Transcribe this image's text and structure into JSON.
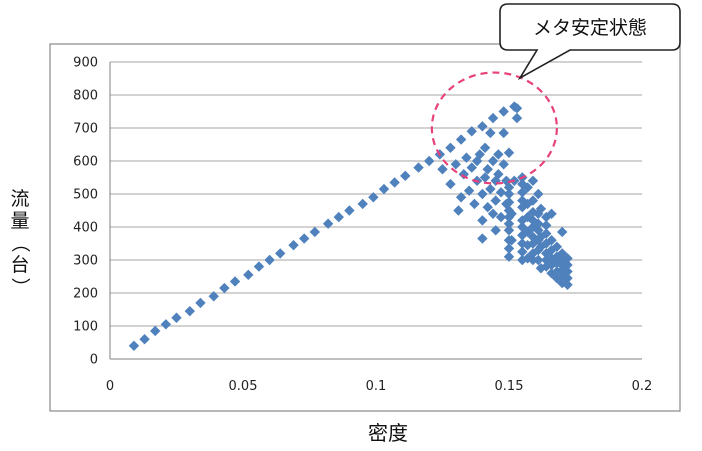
{
  "chart_data": {
    "type": "scatter",
    "xlabel": "密度",
    "ylabel_chars": [
      "流",
      "量",
      "（",
      "台",
      "）"
    ],
    "xlim": [
      0,
      0.2
    ],
    "ylim": [
      0,
      900
    ],
    "x_ticks": [
      "0",
      "0.05",
      "0.1",
      "0.15",
      "0.2"
    ],
    "y_ticks": [
      "0",
      "100",
      "200",
      "300",
      "400",
      "500",
      "600",
      "700",
      "800",
      "900"
    ],
    "x_tick_values": [
      0,
      0.05,
      0.1,
      0.15,
      0.2
    ],
    "y_tick_values": [
      0,
      100,
      200,
      300,
      400,
      500,
      600,
      700,
      800,
      900
    ],
    "grid": true,
    "marker_color": "#4F81BD",
    "annotation": {
      "text": "メタ安定状態",
      "ellipse_color": "#E8407A",
      "ellipse_center": [
        0.1445,
        700
      ],
      "ellipse_rx": 0.0235,
      "ellipse_ry": 168
    },
    "points": [
      [
        0.009,
        40
      ],
      [
        0.013,
        60
      ],
      [
        0.017,
        85
      ],
      [
        0.021,
        105
      ],
      [
        0.025,
        125
      ],
      [
        0.03,
        145
      ],
      [
        0.034,
        170
      ],
      [
        0.039,
        190
      ],
      [
        0.043,
        215
      ],
      [
        0.047,
        235
      ],
      [
        0.052,
        255
      ],
      [
        0.056,
        280
      ],
      [
        0.06,
        300
      ],
      [
        0.064,
        320
      ],
      [
        0.069,
        345
      ],
      [
        0.073,
        365
      ],
      [
        0.077,
        385
      ],
      [
        0.082,
        410
      ],
      [
        0.086,
        430
      ],
      [
        0.09,
        450
      ],
      [
        0.095,
        470
      ],
      [
        0.099,
        490
      ],
      [
        0.103,
        515
      ],
      [
        0.107,
        535
      ],
      [
        0.111,
        555
      ],
      [
        0.116,
        580
      ],
      [
        0.12,
        600
      ],
      [
        0.124,
        620
      ],
      [
        0.128,
        640
      ],
      [
        0.132,
        665
      ],
      [
        0.136,
        690
      ],
      [
        0.14,
        705
      ],
      [
        0.144,
        730
      ],
      [
        0.148,
        750
      ],
      [
        0.152,
        765
      ],
      [
        0.125,
        575
      ],
      [
        0.128,
        530
      ],
      [
        0.13,
        590
      ],
      [
        0.131,
        450
      ],
      [
        0.132,
        490
      ],
      [
        0.133,
        560
      ],
      [
        0.134,
        610
      ],
      [
        0.135,
        510
      ],
      [
        0.136,
        580
      ],
      [
        0.137,
        470
      ],
      [
        0.138,
        540
      ],
      [
        0.138,
        600
      ],
      [
        0.139,
        620
      ],
      [
        0.14,
        365
      ],
      [
        0.14,
        420
      ],
      [
        0.14,
        500
      ],
      [
        0.141,
        550
      ],
      [
        0.141,
        640
      ],
      [
        0.142,
        460
      ],
      [
        0.142,
        575
      ],
      [
        0.143,
        515
      ],
      [
        0.143,
        685
      ],
      [
        0.144,
        600
      ],
      [
        0.144,
        440
      ],
      [
        0.145,
        390
      ],
      [
        0.145,
        480
      ],
      [
        0.145,
        540
      ],
      [
        0.146,
        620
      ],
      [
        0.146,
        560
      ],
      [
        0.147,
        430
      ],
      [
        0.147,
        505
      ],
      [
        0.148,
        685
      ],
      [
        0.148,
        590
      ],
      [
        0.149,
        470
      ],
      [
        0.149,
        540
      ],
      [
        0.15,
        310
      ],
      [
        0.15,
        335
      ],
      [
        0.15,
        360
      ],
      [
        0.15,
        390
      ],
      [
        0.15,
        410
      ],
      [
        0.15,
        430
      ],
      [
        0.15,
        450
      ],
      [
        0.15,
        475
      ],
      [
        0.15,
        500
      ],
      [
        0.15,
        520
      ],
      [
        0.15,
        625
      ],
      [
        0.151,
        360
      ],
      [
        0.151,
        440
      ],
      [
        0.152,
        540
      ],
      [
        0.153,
        760
      ],
      [
        0.153,
        730
      ],
      [
        0.155,
        300
      ],
      [
        0.155,
        325
      ],
      [
        0.155,
        350
      ],
      [
        0.155,
        375
      ],
      [
        0.155,
        400
      ],
      [
        0.155,
        420
      ],
      [
        0.155,
        460
      ],
      [
        0.155,
        480
      ],
      [
        0.155,
        505
      ],
      [
        0.155,
        530
      ],
      [
        0.155,
        550
      ],
      [
        0.157,
        305
      ],
      [
        0.157,
        345
      ],
      [
        0.157,
        385
      ],
      [
        0.157,
        430
      ],
      [
        0.157,
        470
      ],
      [
        0.157,
        520
      ],
      [
        0.159,
        300
      ],
      [
        0.159,
        320
      ],
      [
        0.159,
        350
      ],
      [
        0.159,
        370
      ],
      [
        0.159,
        400
      ],
      [
        0.159,
        420
      ],
      [
        0.159,
        445
      ],
      [
        0.159,
        480
      ],
      [
        0.159,
        540
      ],
      [
        0.161,
        300
      ],
      [
        0.161,
        330
      ],
      [
        0.161,
        360
      ],
      [
        0.161,
        390
      ],
      [
        0.161,
        410
      ],
      [
        0.161,
        440
      ],
      [
        0.161,
        500
      ],
      [
        0.162,
        275
      ],
      [
        0.162,
        340
      ],
      [
        0.162,
        370
      ],
      [
        0.162,
        455
      ],
      [
        0.164,
        280
      ],
      [
        0.164,
        300
      ],
      [
        0.164,
        320
      ],
      [
        0.164,
        350
      ],
      [
        0.164,
        380
      ],
      [
        0.164,
        405
      ],
      [
        0.164,
        430
      ],
      [
        0.166,
        260
      ],
      [
        0.166,
        285
      ],
      [
        0.166,
        305
      ],
      [
        0.166,
        330
      ],
      [
        0.166,
        360
      ],
      [
        0.166,
        440
      ],
      [
        0.168,
        245
      ],
      [
        0.168,
        265
      ],
      [
        0.168,
        290
      ],
      [
        0.168,
        310
      ],
      [
        0.168,
        340
      ],
      [
        0.17,
        230
      ],
      [
        0.17,
        250
      ],
      [
        0.17,
        270
      ],
      [
        0.17,
        285
      ],
      [
        0.17,
        300
      ],
      [
        0.17,
        320
      ],
      [
        0.17,
        385
      ],
      [
        0.172,
        225
      ],
      [
        0.172,
        245
      ],
      [
        0.172,
        265
      ],
      [
        0.172,
        285
      ],
      [
        0.172,
        305
      ]
    ]
  }
}
